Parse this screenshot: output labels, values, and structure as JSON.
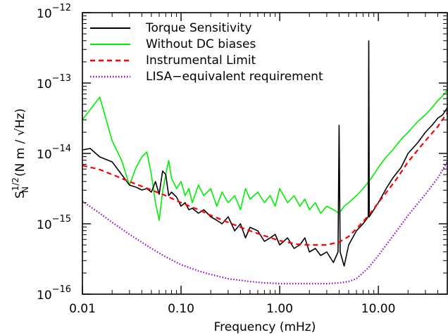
{
  "chart_data": {
    "type": "line",
    "xlabel": "Frequency (mHz)",
    "ylabel": {
      "base": "S",
      "sub": "N",
      "sup": "1/2",
      "units": "(N m / √Hz)"
    },
    "xscale": "log",
    "yscale": "log",
    "xlim": [
      0.01,
      50
    ],
    "ylim_exp": [
      -16,
      -12
    ],
    "x_ticks": [
      {
        "value": 0.01,
        "label": "0.01"
      },
      {
        "value": 0.1,
        "label": "0.10"
      },
      {
        "value": 1,
        "label": "1.00"
      },
      {
        "value": 10,
        "label": "10.00"
      }
    ],
    "y_ticks": [
      {
        "exp": -16,
        "base": "10",
        "sup": "−16"
      },
      {
        "exp": -15,
        "base": "10",
        "sup": "−15"
      },
      {
        "exp": -14,
        "base": "10",
        "sup": "−14"
      },
      {
        "exp": -13,
        "base": "10",
        "sup": "−13"
      },
      {
        "exp": -12,
        "base": "10",
        "sup": "−12"
      }
    ],
    "grid": false,
    "legend_position": "top-left",
    "series": [
      {
        "name": "Without DC biases",
        "color": "#00ee00",
        "style": "solid",
        "x": [
          0.01,
          0.015,
          0.02,
          0.025,
          0.03,
          0.035,
          0.04,
          0.045,
          0.05,
          0.055,
          0.06,
          0.065,
          0.07,
          0.075,
          0.08,
          0.09,
          0.1,
          0.11,
          0.12,
          0.13,
          0.15,
          0.17,
          0.2,
          0.23,
          0.26,
          0.3,
          0.35,
          0.4,
          0.45,
          0.5,
          0.6,
          0.7,
          0.8,
          0.9,
          1.0,
          1.2,
          1.4,
          1.6,
          1.8,
          2.0,
          2.3,
          2.6,
          3.0,
          3.5,
          4.0,
          4.5,
          5.0,
          6.0,
          7.0,
          8.0,
          9.0,
          10,
          12,
          14,
          17,
          20,
          25,
          30,
          35,
          40,
          45,
          50
        ],
        "y_exp": [
          -13.52,
          -13.2,
          -13.82,
          -14.1,
          -14.45,
          -14.2,
          -14.05,
          -13.98,
          -14.3,
          -14.7,
          -14.95,
          -14.55,
          -14.3,
          -14.1,
          -14.35,
          -14.5,
          -14.4,
          -14.6,
          -14.5,
          -14.7,
          -14.45,
          -14.6,
          -14.5,
          -14.75,
          -14.55,
          -14.7,
          -14.6,
          -14.8,
          -14.5,
          -14.65,
          -14.55,
          -14.7,
          -14.6,
          -14.75,
          -14.5,
          -14.7,
          -14.6,
          -14.75,
          -14.65,
          -14.8,
          -14.7,
          -14.85,
          -14.75,
          -14.8,
          -14.85,
          -14.75,
          -14.7,
          -14.6,
          -14.5,
          -14.4,
          -14.3,
          -14.2,
          -14.05,
          -13.95,
          -13.8,
          -13.7,
          -13.55,
          -13.45,
          -13.35,
          -13.25,
          -13.18,
          -13.1
        ]
      },
      {
        "name": "Torque Sensitivity",
        "color": "#000000",
        "style": "solid",
        "x": [
          0.01,
          0.012,
          0.015,
          0.02,
          0.025,
          0.03,
          0.035,
          0.04,
          0.045,
          0.05,
          0.055,
          0.06,
          0.065,
          0.07,
          0.075,
          0.08,
          0.09,
          0.1,
          0.11,
          0.12,
          0.13,
          0.15,
          0.17,
          0.2,
          0.23,
          0.26,
          0.3,
          0.35,
          0.4,
          0.45,
          0.5,
          0.6,
          0.7,
          0.8,
          0.9,
          1.0,
          1.2,
          1.4,
          1.6,
          1.8,
          2.0,
          2.3,
          2.6,
          3.0,
          3.5,
          3.9,
          4.0,
          4.1,
          4.5,
          5.0,
          6.0,
          7.0,
          7.9,
          8.0,
          8.1,
          9.0,
          10,
          12,
          14,
          17,
          20,
          25,
          30,
          35,
          40,
          45,
          50
        ],
        "y_exp": [
          -13.95,
          -13.93,
          -14.05,
          -14.12,
          -14.3,
          -14.45,
          -14.48,
          -14.52,
          -14.5,
          -14.55,
          -14.4,
          -14.58,
          -14.25,
          -14.3,
          -14.6,
          -14.55,
          -14.62,
          -14.75,
          -14.7,
          -14.8,
          -14.78,
          -14.85,
          -14.8,
          -14.9,
          -14.95,
          -15.0,
          -14.9,
          -15.1,
          -15.0,
          -15.2,
          -15.05,
          -15.1,
          -15.25,
          -15.2,
          -15.15,
          -15.3,
          -15.2,
          -15.35,
          -15.3,
          -15.2,
          -15.4,
          -15.35,
          -15.45,
          -15.4,
          -15.55,
          -15.4,
          -13.6,
          -15.4,
          -15.6,
          -15.3,
          -15.1,
          -15.0,
          -14.9,
          -12.4,
          -14.9,
          -14.8,
          -14.7,
          -14.5,
          -14.35,
          -14.2,
          -14.0,
          -13.85,
          -13.7,
          -13.6,
          -13.5,
          -13.45,
          -13.35
        ]
      },
      {
        "name": "Instrumental Limit",
        "color": "#ff0000",
        "style": "dashed",
        "x": [
          0.01,
          0.015,
          0.02,
          0.03,
          0.05,
          0.07,
          0.1,
          0.15,
          0.2,
          0.3,
          0.5,
          0.7,
          1.0,
          1.5,
          2.0,
          3.0,
          4.0,
          5.0,
          6.0,
          8.0,
          10,
          15,
          20,
          30,
          40,
          50
        ],
        "y_exp": [
          -14.17,
          -14.23,
          -14.3,
          -14.4,
          -14.52,
          -14.6,
          -14.7,
          -14.8,
          -14.88,
          -14.98,
          -15.1,
          -15.17,
          -15.24,
          -15.29,
          -15.3,
          -15.3,
          -15.26,
          -15.18,
          -15.07,
          -14.88,
          -14.7,
          -14.38,
          -14.12,
          -13.82,
          -13.62,
          -13.42
        ]
      },
      {
        "name": "LISA−equivalent requirement",
        "color": "#9400d3",
        "style": "dotted",
        "x": [
          0.01,
          0.015,
          0.02,
          0.03,
          0.05,
          0.07,
          0.1,
          0.15,
          0.2,
          0.3,
          0.5,
          0.7,
          1.0,
          1.5,
          2.0,
          3.0,
          4.0,
          5.0,
          6.0,
          8.0,
          10,
          15,
          20,
          30,
          40,
          50
        ],
        "y_exp": [
          -14.68,
          -14.85,
          -14.98,
          -15.15,
          -15.35,
          -15.47,
          -15.58,
          -15.67,
          -15.72,
          -15.78,
          -15.82,
          -15.84,
          -15.85,
          -15.85,
          -15.85,
          -15.85,
          -15.84,
          -15.82,
          -15.78,
          -15.62,
          -15.45,
          -15.12,
          -14.88,
          -14.58,
          -14.35,
          -14.12
        ]
      }
    ],
    "legend_order": [
      1,
      0,
      2,
      3
    ]
  }
}
